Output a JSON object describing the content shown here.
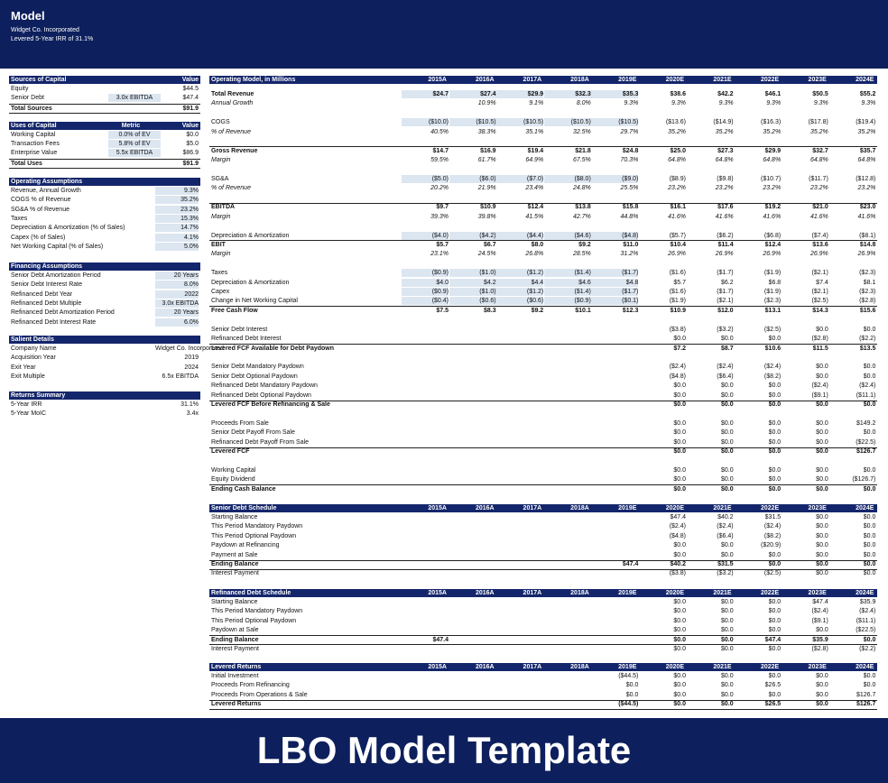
{
  "header": {
    "title": "Model",
    "company": "Widget Co. Incorporated",
    "subtitle": "Levered 5-Year IRR of 31.1%"
  },
  "left_panel": [
    {
      "title": "Sources of Capital",
      "columns": [
        "Value"
      ],
      "rows": [
        [
          "Equity",
          null,
          "$44.5"
        ],
        [
          "Senior Debt",
          "3.0x EBITDA",
          "$47.4"
        ],
        [
          "Total Sources",
          null,
          "$91.9"
        ]
      ]
    },
    {
      "title": "Uses of Capital",
      "columns": [
        "Metric",
        "Value"
      ],
      "rows": [
        [
          "Working Capital",
          "0.0% of EV",
          "$0.0"
        ],
        [
          "Transaction Fees",
          "5.8% of EV",
          "$5.0"
        ],
        [
          "Enterprise Value",
          "5.5x EBITDA",
          "$86.9"
        ],
        [
          "Total Uses",
          null,
          "$91.9"
        ]
      ]
    },
    {
      "title": "Operating Assumptions",
      "rows": [
        [
          "Revenue, Annual Growth",
          "9.3%"
        ],
        [
          "COGS % of Revenue",
          "35.2%"
        ],
        [
          "SG&A % of Revenue",
          "23.2%"
        ],
        [
          "Taxes",
          "15.3%"
        ],
        [
          "Depreciation & Amortization (% of Sales)",
          "14.7%"
        ],
        [
          "Capex (% of Sales)",
          "4.1%"
        ],
        [
          "Net Working Capital (% of Sales)",
          "5.0%"
        ]
      ]
    },
    {
      "title": "Financing Assumptions",
      "rows": [
        [
          "Senior Debt Amortization Period",
          "20 Years"
        ],
        [
          "Senior Debt Interest Rate",
          "8.0%"
        ],
        [
          "Refinanced Debt Year",
          "2022"
        ],
        [
          "Refinanced Debt Multiple",
          "3.0x EBITDA"
        ],
        [
          "Refinanced Debt Amortization Period",
          "20 Years"
        ],
        [
          "Refinanced Debt Interest Rate",
          "6.0%"
        ]
      ]
    },
    {
      "title": "Salient Details",
      "rows": [
        [
          "Company Name",
          "Widget Co. Incorporated"
        ],
        [
          "Acquisition Year",
          "2019"
        ],
        [
          "Exit Year",
          "2024"
        ],
        [
          "Exit Multiple",
          "6.5x EBITDA"
        ]
      ]
    },
    {
      "title": "Returns Summary",
      "rows": [
        [
          "5-Year IRR",
          "31.1%"
        ],
        [
          "5-Year MoIC",
          "3.4x"
        ]
      ]
    }
  ],
  "operating_model": {
    "title": "Operating Model, in Millions",
    "years": [
      "2015A",
      "2016A",
      "2017A",
      "2018A",
      "2019E",
      "2020E",
      "2021E",
      "2022E",
      "2023E",
      "2024E"
    ],
    "rows": [
      [
        "Total Revenue",
        "$24.7",
        "$27.4",
        "$29.9",
        "$32.3",
        "$35.3",
        "$38.6",
        "$42.2",
        "$46.1",
        "$50.5",
        "$55.2"
      ],
      [
        "Annual Growth",
        null,
        "10.9%",
        "9.1%",
        "8.0%",
        "9.3%",
        "9.3%",
        "9.3%",
        "9.3%",
        "9.3%",
        "9.3%"
      ],
      [
        "COGS",
        "($10.0)",
        "($10.5)",
        "($10.5)",
        "($10.5)",
        "($10.5)",
        "($13.6)",
        "($14.9)",
        "($16.3)",
        "($17.8)",
        "($19.4)"
      ],
      [
        "% of Revenue",
        "40.5%",
        "38.3%",
        "35.1%",
        "32.5%",
        "29.7%",
        "35.2%",
        "35.2%",
        "35.2%",
        "35.2%",
        "35.2%"
      ],
      [
        "Gross Revenue",
        "$14.7",
        "$16.9",
        "$19.4",
        "$21.8",
        "$24.8",
        "$25.0",
        "$27.3",
        "$29.9",
        "$32.7",
        "$35.7"
      ],
      [
        "Margin",
        "59.5%",
        "61.7%",
        "64.9%",
        "67.5%",
        "70.3%",
        "64.8%",
        "64.8%",
        "64.8%",
        "64.8%",
        "64.8%"
      ],
      [
        "SG&A",
        "($5.0)",
        "($6.0)",
        "($7.0)",
        "($8.0)",
        "($9.0)",
        "($8.9)",
        "($9.8)",
        "($10.7)",
        "($11.7)",
        "($12.8)"
      ],
      [
        "% of Revenue",
        "20.2%",
        "21.9%",
        "23.4%",
        "24.8%",
        "25.5%",
        "23.2%",
        "23.2%",
        "23.2%",
        "23.2%",
        "23.2%"
      ],
      [
        "EBITDA",
        "$9.7",
        "$10.9",
        "$12.4",
        "$13.8",
        "$15.8",
        "$16.1",
        "$17.6",
        "$19.2",
        "$21.0",
        "$23.0"
      ],
      [
        "Margin",
        "39.3%",
        "39.8%",
        "41.5%",
        "42.7%",
        "44.8%",
        "41.6%",
        "41.6%",
        "41.6%",
        "41.6%",
        "41.6%"
      ],
      [
        "Depreciation & Amortization",
        "($4.0)",
        "($4.2)",
        "($4.4)",
        "($4.6)",
        "($4.8)",
        "($5.7)",
        "($6.2)",
        "($6.8)",
        "($7.4)",
        "($8.1)"
      ],
      [
        "EBIT",
        "$5.7",
        "$6.7",
        "$8.0",
        "$9.2",
        "$11.0",
        "$10.4",
        "$11.4",
        "$12.4",
        "$13.6",
        "$14.8"
      ],
      [
        "Margin",
        "23.1%",
        "24.5%",
        "26.8%",
        "28.5%",
        "31.2%",
        "26.9%",
        "26.9%",
        "26.9%",
        "26.9%",
        "26.9%"
      ],
      [
        "Taxes",
        "($0.9)",
        "($1.0)",
        "($1.2)",
        "($1.4)",
        "($1.7)",
        "($1.6)",
        "($1.7)",
        "($1.9)",
        "($2.1)",
        "($2.3)"
      ],
      [
        "Depreciation & Amortization",
        "$4.0",
        "$4.2",
        "$4.4",
        "$4.6",
        "$4.8",
        "$5.7",
        "$6.2",
        "$6.8",
        "$7.4",
        "$8.1"
      ],
      [
        "Capex",
        "($0.9)",
        "($1.0)",
        "($1.2)",
        "($1.4)",
        "($1.7)",
        "($1.6)",
        "($1.7)",
        "($1.9)",
        "($2.1)",
        "($2.3)"
      ],
      [
        "Change in Net Working Capital",
        "($0.4)",
        "($0.6)",
        "($0.6)",
        "($0.9)",
        "($0.1)",
        "($1.9)",
        "($2.1)",
        "($2.3)",
        "($2.5)",
        "($2.8)"
      ],
      [
        "Free Cash Flow",
        "$7.5",
        "$8.3",
        "$9.2",
        "$10.1",
        "$12.3",
        "$10.9",
        "$12.0",
        "$13.1",
        "$14.3",
        "$15.6"
      ],
      [
        "Senior Debt Interest",
        null,
        null,
        null,
        null,
        null,
        "($3.8)",
        "($3.2)",
        "($2.5)",
        "$0.0",
        "$0.0"
      ],
      [
        "Refinanced Debt Interest",
        null,
        null,
        null,
        null,
        null,
        "$0.0",
        "$0.0",
        "$0.0",
        "($2.8)",
        "($2.2)"
      ],
      [
        "Levered FCF Available for Debt Paydown",
        null,
        null,
        null,
        null,
        null,
        "$7.2",
        "$8.7",
        "$10.6",
        "$11.5",
        "$13.5"
      ],
      [
        "Senior Debt Mandatory Paydown",
        null,
        null,
        null,
        null,
        null,
        "($2.4)",
        "($2.4)",
        "($2.4)",
        "$0.0",
        "$0.0"
      ],
      [
        "Senior Debt Optional Paydown",
        null,
        null,
        null,
        null,
        null,
        "($4.8)",
        "($6.4)",
        "($8.2)",
        "$0.0",
        "$0.0"
      ],
      [
        "Refinanced Debt Mandatory Paydown",
        null,
        null,
        null,
        null,
        null,
        "$0.0",
        "$0.0",
        "$0.0",
        "($2.4)",
        "($2.4)"
      ],
      [
        "Refinanced Debt Optional Paydown",
        null,
        null,
        null,
        null,
        null,
        "$0.0",
        "$0.0",
        "$0.0",
        "($9.1)",
        "($11.1)"
      ],
      [
        "Levered FCF Before Refinancing & Sale",
        null,
        null,
        null,
        null,
        null,
        "$0.0",
        "$0.0",
        "$0.0",
        "$0.0",
        "$0.0"
      ],
      [
        "Proceeds From Sale",
        null,
        null,
        null,
        null,
        null,
        "$0.0",
        "$0.0",
        "$0.0",
        "$0.0",
        "$149.2"
      ],
      [
        "Senior Debt Payoff From Sale",
        null,
        null,
        null,
        null,
        null,
        "$0.0",
        "$0.0",
        "$0.0",
        "$0.0",
        "$0.0"
      ],
      [
        "Refinanced Debt Payoff From Sale",
        null,
        null,
        null,
        null,
        null,
        "$0.0",
        "$0.0",
        "$0.0",
        "$0.0",
        "($22.5)"
      ],
      [
        "Levered FCF",
        null,
        null,
        null,
        null,
        null,
        "$0.0",
        "$0.0",
        "$0.0",
        "$0.0",
        "$126.7"
      ],
      [
        "Working Capital",
        null,
        null,
        null,
        null,
        null,
        "$0.0",
        "$0.0",
        "$0.0",
        "$0.0",
        "$0.0"
      ],
      [
        "Equity Dividend",
        null,
        null,
        null,
        null,
        null,
        "$0.0",
        "$0.0",
        "$0.0",
        "$0.0",
        "($126.7)"
      ],
      [
        "Ending Cash Balance",
        null,
        null,
        null,
        null,
        null,
        "$0.0",
        "$0.0",
        "$0.0",
        "$0.0",
        "$0.0"
      ]
    ]
  },
  "schedules": [
    {
      "title": "Senior Debt Schedule",
      "years": [
        "2015A",
        "2016A",
        "2017A",
        "2018A",
        "2019E",
        "2020E",
        "2021E",
        "2022E",
        "2023E",
        "2024E"
      ],
      "rows": [
        [
          "Starting Balance",
          null,
          null,
          null,
          null,
          null,
          "$47.4",
          "$40.2",
          "$31.5",
          "$0.0",
          "$0.0"
        ],
        [
          "This Period Mandatory Paydown",
          null,
          null,
          null,
          null,
          null,
          "($2.4)",
          "($2.4)",
          "($2.4)",
          "$0.0",
          "$0.0"
        ],
        [
          "This Period Optional Paydown",
          null,
          null,
          null,
          null,
          null,
          "($4.8)",
          "($6.4)",
          "($8.2)",
          "$0.0",
          "$0.0"
        ],
        [
          "Paydown at Refinancing",
          null,
          null,
          null,
          null,
          null,
          "$0.0",
          "$0.0",
          "($20.9)",
          "$0.0",
          "$0.0"
        ],
        [
          "Payment at Sale",
          null,
          null,
          null,
          null,
          null,
          "$0.0",
          "$0.0",
          "$0.0",
          "$0.0",
          "$0.0"
        ],
        [
          "Ending Balance",
          null,
          null,
          null,
          null,
          "$47.4",
          "$40.2",
          "$31.5",
          "$0.0",
          "$0.0",
          "$0.0"
        ],
        [
          "Interest Payment",
          null,
          null,
          null,
          null,
          null,
          "($3.8)",
          "($3.2)",
          "($2.5)",
          "$0.0",
          "$0.0"
        ]
      ]
    },
    {
      "title": "Refinanced Debt Schedule",
      "years": [
        "2015A",
        "2016A",
        "2017A",
        "2018A",
        "2019E",
        "2020E",
        "2021E",
        "2022E",
        "2023E",
        "2024E"
      ],
      "rows": [
        [
          "Starting Balance",
          null,
          null,
          null,
          null,
          null,
          "$0.0",
          "$0.0",
          "$0.0",
          "$47.4",
          "$35.9"
        ],
        [
          "This Period Mandatory Paydown",
          null,
          null,
          null,
          null,
          null,
          "$0.0",
          "$0.0",
          "$0.0",
          "($2.4)",
          "($2.4)"
        ],
        [
          "This Period Optional Paydown",
          null,
          null,
          null,
          null,
          null,
          "$0.0",
          "$0.0",
          "$0.0",
          "($9.1)",
          "($11.1)"
        ],
        [
          "Paydown at Sale",
          null,
          null,
          null,
          null,
          null,
          "$0.0",
          "$0.0",
          "$0.0",
          "$0.0",
          "($22.5)"
        ],
        [
          "Ending Balance",
          "$47.4",
          null,
          null,
          null,
          null,
          "$0.0",
          "$0.0",
          "$47.4",
          "$35.9",
          "$0.0"
        ],
        [
          "Interest Payment",
          null,
          null,
          null,
          null,
          null,
          "$0.0",
          "$0.0",
          "$0.0",
          "($2.8)",
          "($2.2)"
        ]
      ]
    },
    {
      "title": "Levered Returns",
      "years": [
        "2015A",
        "2016A",
        "2017A",
        "2018A",
        "2019E",
        "2020E",
        "2021E",
        "2022E",
        "2023E",
        "2024E"
      ],
      "rows": [
        [
          "Initial Investment",
          null,
          null,
          null,
          null,
          "($44.5)",
          "$0.0",
          "$0.0",
          "$0.0",
          "$0.0",
          "$0.0"
        ],
        [
          "Proceeds From Refinancing",
          null,
          null,
          null,
          null,
          "$0.0",
          "$0.0",
          "$0.0",
          "$26.5",
          "$0.0",
          "$0.0"
        ],
        [
          "Proceeds From Operations & Sale",
          null,
          null,
          null,
          null,
          "$0.0",
          "$0.0",
          "$0.0",
          "$0.0",
          "$0.0",
          "$126.7"
        ],
        [
          "Levered Returns",
          null,
          null,
          null,
          null,
          "($44.5)",
          "$0.0",
          "$0.0",
          "$26.5",
          "$0.0",
          "$126.7"
        ]
      ]
    }
  ],
  "footer": {
    "title": "LBO Model Template"
  }
}
